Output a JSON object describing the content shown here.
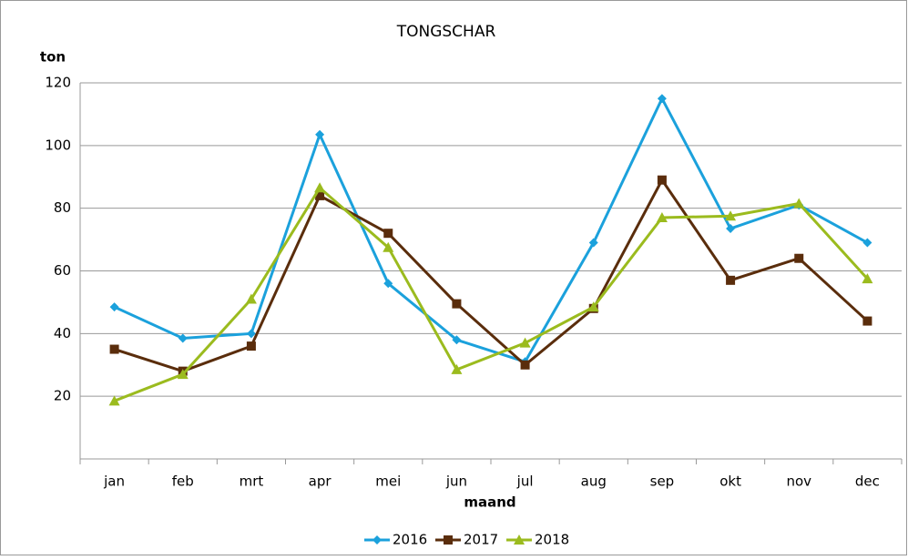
{
  "chart_data": {
    "type": "line",
    "title": "TONGSCHAR",
    "y_label": "ton",
    "x_label": "maand",
    "categories": [
      "jan",
      "feb",
      "mrt",
      "apr",
      "mei",
      "jun",
      "jul",
      "aug",
      "sep",
      "okt",
      "nov",
      "dec"
    ],
    "series": [
      {
        "name": "2016",
        "color": "#1ba1dc",
        "marker": "diamond",
        "values": [
          48.5,
          38.5,
          40,
          103.5,
          56,
          38,
          31,
          69,
          115,
          73.5,
          81,
          69
        ]
      },
      {
        "name": "2017",
        "color": "#5a2d0c",
        "marker": "square",
        "values": [
          35,
          28,
          36,
          84,
          72,
          49.5,
          30,
          48,
          89,
          57,
          64,
          44
        ]
      },
      {
        "name": "2018",
        "color": "#9bbb1e",
        "marker": "triangle",
        "values": [
          18.5,
          27,
          51,
          86.5,
          67.5,
          28.5,
          37,
          48.5,
          77,
          77.5,
          81.5,
          57.5
        ]
      }
    ],
    "ylim": [
      0,
      120
    ],
    "yticks": [
      20,
      40,
      60,
      80,
      100,
      120
    ],
    "grid": true,
    "legend": "bottom"
  }
}
